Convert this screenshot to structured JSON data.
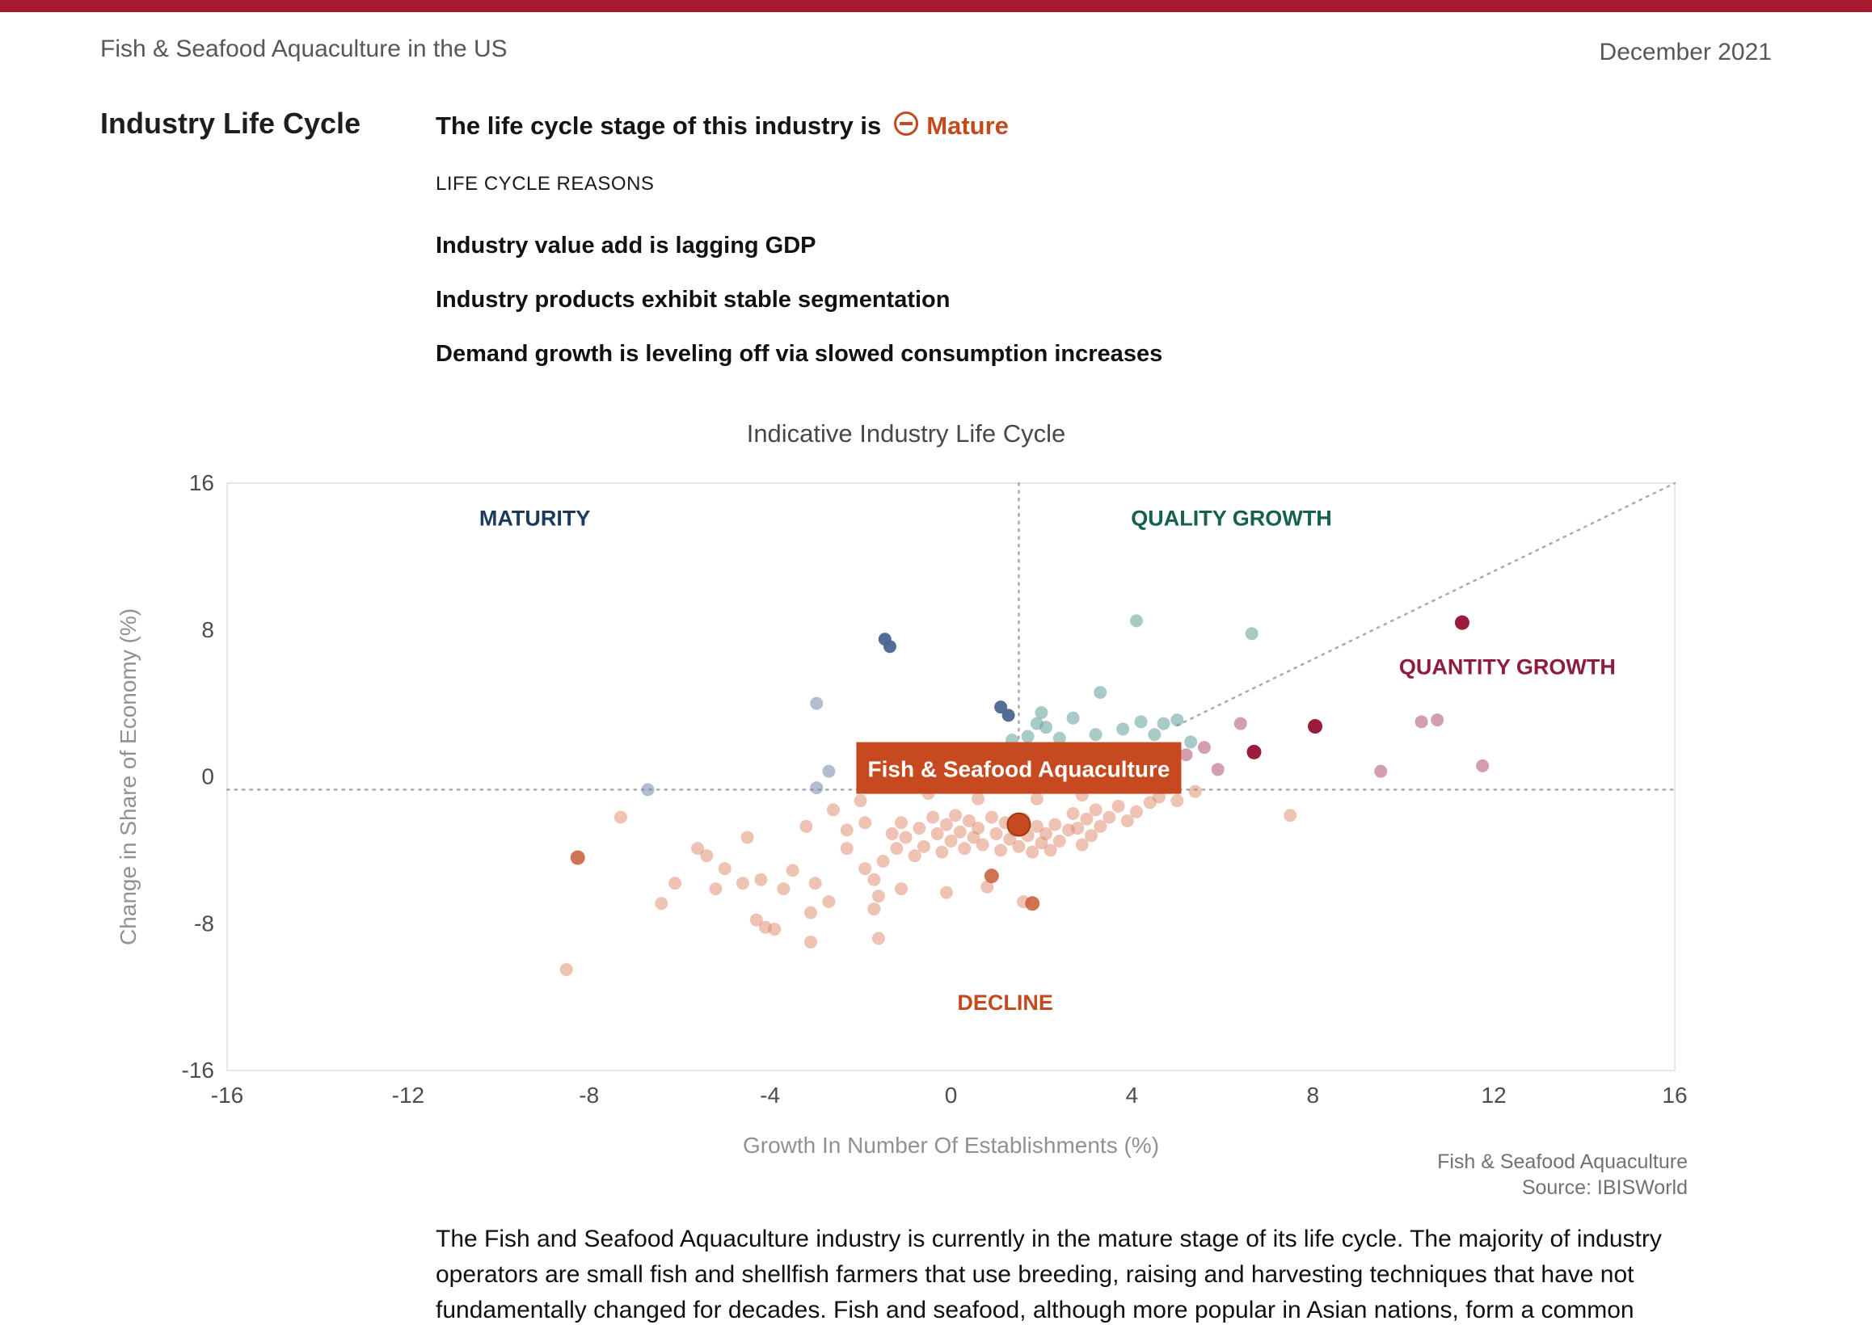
{
  "page": {
    "title": "Fish & Seafood Aquaculture in the US",
    "date": "December 2021"
  },
  "colors": {
    "topbar_red": "#A6192E",
    "accent_orange": "#C24A1D"
  },
  "icons": {
    "stage": "circle-minus-icon"
  },
  "section": {
    "title": "Industry Life Cycle",
    "stage_prefix": "The life cycle stage of this industry is",
    "stage": "Mature",
    "reasons_label": "LIFE CYCLE REASONS",
    "reasons": [
      "Industry value add is lagging GDP",
      "Industry products exhibit stable segmentation",
      "Demand growth is leveling off via slowed consumption increases"
    ]
  },
  "chart_data": {
    "type": "scatter",
    "title": "Indicative Industry Life Cycle",
    "xlabel": "Growth In Number Of Establishments (%)",
    "ylabel": "Change in Share of Economy (%)",
    "xlim": [
      -16,
      16
    ],
    "ylim": [
      -16,
      16
    ],
    "xticks": [
      -16,
      -12,
      -8,
      -4,
      0,
      4,
      8,
      12,
      16
    ],
    "yticks": [
      16,
      8,
      0,
      -8,
      -16
    ],
    "grid": false,
    "boundaries": {
      "h_y": -0.7,
      "v_x": 1.5,
      "diagonal": {
        "x1": 5,
        "y1": 2.8,
        "x2": 16,
        "y2": 16
      }
    },
    "quadrants": [
      {
        "label": "MATURITY",
        "x": -9.2,
        "y": 13.7,
        "color": "#1B3A5C"
      },
      {
        "label": "QUALITY GROWTH",
        "x": 6.2,
        "y": 13.7,
        "color": "#15604F"
      },
      {
        "label": "QUANTITY GROWTH",
        "x": 12.3,
        "y": 5.6,
        "color": "#8E1C3C"
      },
      {
        "label": "DECLINE",
        "x": 1.2,
        "y": -12.7,
        "color": "#C24A1E"
      }
    ],
    "series": [
      {
        "name": "peer-industries",
        "color": "#DB7A58",
        "opacity": 0.45,
        "r": 8,
        "points": [
          [
            -8.5,
            -10.5
          ],
          [
            -7.3,
            -2.2
          ],
          [
            -6.4,
            -6.9
          ],
          [
            -6.1,
            -5.8
          ],
          [
            -5.6,
            -3.9
          ],
          [
            -5.4,
            -4.3
          ],
          [
            -5.2,
            -6.1
          ],
          [
            -5.0,
            -5.0
          ],
          [
            -4.6,
            -5.8
          ],
          [
            -4.5,
            -3.3
          ],
          [
            -4.3,
            -7.8
          ],
          [
            -4.2,
            -5.6
          ],
          [
            -4.1,
            -8.2
          ],
          [
            -3.9,
            -8.3
          ],
          [
            -3.7,
            -6.1
          ],
          [
            -3.5,
            -5.1
          ],
          [
            -3.2,
            -2.7
          ],
          [
            -3.1,
            -7.4
          ],
          [
            -3.1,
            -9.0
          ],
          [
            -3.0,
            -5.8
          ],
          [
            -2.7,
            -6.8
          ],
          [
            -2.6,
            -1.8
          ],
          [
            -2.3,
            -2.9
          ],
          [
            -2.3,
            -3.9
          ],
          [
            -2.0,
            -1.3
          ],
          [
            -1.9,
            -2.5
          ],
          [
            -1.9,
            -5.0
          ],
          [
            -1.7,
            -5.6
          ],
          [
            -1.7,
            -7.2
          ],
          [
            -1.6,
            -6.5
          ],
          [
            -1.6,
            -8.8
          ],
          [
            -1.5,
            -4.6
          ],
          [
            -1.3,
            -3.1
          ],
          [
            -1.2,
            -3.9
          ],
          [
            -1.1,
            -2.5
          ],
          [
            -1.1,
            -6.1
          ],
          [
            -1.0,
            -3.3
          ],
          [
            -0.8,
            -4.3
          ],
          [
            -0.7,
            -2.8
          ],
          [
            -0.6,
            -3.8
          ],
          [
            -0.5,
            -0.9
          ],
          [
            -0.4,
            -2.2
          ],
          [
            -0.3,
            -3.1
          ],
          [
            -0.2,
            -4.1
          ],
          [
            -0.1,
            -2.6
          ],
          [
            -0.1,
            -6.3
          ],
          [
            0.0,
            -3.5
          ],
          [
            0.1,
            -2.1
          ],
          [
            0.2,
            -3.0
          ],
          [
            0.3,
            -3.9
          ],
          [
            0.4,
            -2.4
          ],
          [
            0.5,
            -3.3
          ],
          [
            0.6,
            -1.2
          ],
          [
            0.6,
            -2.8
          ],
          [
            0.7,
            -3.7
          ],
          [
            0.8,
            -6.0
          ],
          [
            0.9,
            -2.2
          ],
          [
            1.0,
            -3.1
          ],
          [
            1.1,
            -4.0
          ],
          [
            1.2,
            -2.5
          ],
          [
            1.3,
            -3.4
          ],
          [
            1.4,
            -2.9
          ],
          [
            1.5,
            -3.8
          ],
          [
            1.6,
            -2.3
          ],
          [
            1.6,
            -6.8
          ],
          [
            1.7,
            -3.2
          ],
          [
            1.8,
            -4.1
          ],
          [
            1.9,
            -1.2
          ],
          [
            1.9,
            -2.7
          ],
          [
            2.0,
            -3.6
          ],
          [
            2.1,
            -3.1
          ],
          [
            2.2,
            -4.0
          ],
          [
            2.3,
            -2.6
          ],
          [
            2.4,
            -3.5
          ],
          [
            2.6,
            -2.9
          ],
          [
            2.7,
            -2.0
          ],
          [
            2.8,
            -2.8
          ],
          [
            2.9,
            -1.0
          ],
          [
            2.9,
            -3.7
          ],
          [
            3.0,
            -2.3
          ],
          [
            3.1,
            -3.2
          ],
          [
            3.2,
            -1.8
          ],
          [
            3.3,
            -2.7
          ],
          [
            3.5,
            -2.2
          ],
          [
            3.7,
            -1.6
          ],
          [
            3.9,
            -2.4
          ],
          [
            4.1,
            -1.9
          ],
          [
            4.4,
            -1.4
          ],
          [
            4.6,
            -1.1
          ],
          [
            5.0,
            -1.3
          ],
          [
            5.4,
            -0.8
          ],
          [
            7.5,
            -2.1
          ],
          [
            -0.1,
            0.2
          ],
          [
            0.5,
            0.3
          ]
        ]
      },
      {
        "name": "peer-industries-strong",
        "color": "#C75B31",
        "opacity": 0.85,
        "r": 9,
        "points": [
          [
            -8.25,
            -4.4
          ],
          [
            1.8,
            -6.9
          ],
          [
            0.9,
            -5.4
          ]
        ]
      },
      {
        "name": "maturity-industries",
        "color": "#7389A8",
        "opacity": 0.55,
        "r": 8,
        "points": [
          [
            -6.7,
            -0.7
          ],
          [
            -2.97,
            -0.6
          ],
          [
            -2.7,
            0.3
          ],
          [
            -2.97,
            4.0
          ],
          [
            -0.3,
            0.2
          ]
        ]
      },
      {
        "name": "maturity-industries-strong",
        "color": "#4A6690",
        "opacity": 0.95,
        "r": 8,
        "points": [
          [
            -1.46,
            7.5
          ],
          [
            -1.35,
            7.1
          ],
          [
            1.1,
            3.8
          ],
          [
            1.27,
            3.35
          ]
        ]
      },
      {
        "name": "quality-growth-industries",
        "color": "#63A09B",
        "opacity": 0.55,
        "r": 8,
        "points": [
          [
            4.1,
            8.5
          ],
          [
            6.65,
            7.8
          ],
          [
            3.3,
            4.6
          ],
          [
            2.0,
            3.5
          ],
          [
            1.9,
            2.9
          ],
          [
            2.1,
            2.7
          ],
          [
            2.7,
            3.2
          ],
          [
            3.8,
            2.6
          ],
          [
            4.2,
            3.0
          ],
          [
            4.7,
            2.9
          ],
          [
            5.0,
            3.1
          ],
          [
            1.7,
            2.2
          ],
          [
            1.35,
            2.0
          ],
          [
            3.2,
            2.3
          ],
          [
            2.4,
            2.1
          ],
          [
            4.5,
            2.3
          ],
          [
            5.3,
            1.9
          ]
        ]
      },
      {
        "name": "quantity-growth-industries-strong",
        "color": "#9B1B3C",
        "opacity": 1,
        "r": 9,
        "points": [
          [
            11.3,
            8.4
          ],
          [
            8.05,
            2.75
          ],
          [
            6.7,
            1.35
          ]
        ]
      },
      {
        "name": "quantity-growth-industries-light",
        "color": "#B65F79",
        "opacity": 0.6,
        "r": 8,
        "points": [
          [
            10.4,
            3.0
          ],
          [
            10.75,
            3.1
          ],
          [
            11.75,
            0.6
          ],
          [
            9.5,
            0.3
          ],
          [
            6.4,
            2.9
          ],
          [
            5.9,
            0.4
          ],
          [
            5.6,
            1.6
          ],
          [
            5.2,
            1.2
          ]
        ]
      }
    ],
    "highlight": {
      "label": "Fish & Seafood Aquaculture",
      "x": 1.5,
      "y": -2.6,
      "color": "#C7491F"
    }
  },
  "chart_footer": {
    "line1": "Fish & Seafood Aquaculture",
    "line2": "Source: IBISWorld"
  },
  "body_text": "The Fish and Seafood Aquaculture industry is currently in the mature stage of its life cycle. The majority of industry operators are small fish and shellfish farmers that use breeding, raising and harvesting techniques that have not fundamentally changed for decades. Fish and seafood, although more popular in Asian nations, form a common"
}
